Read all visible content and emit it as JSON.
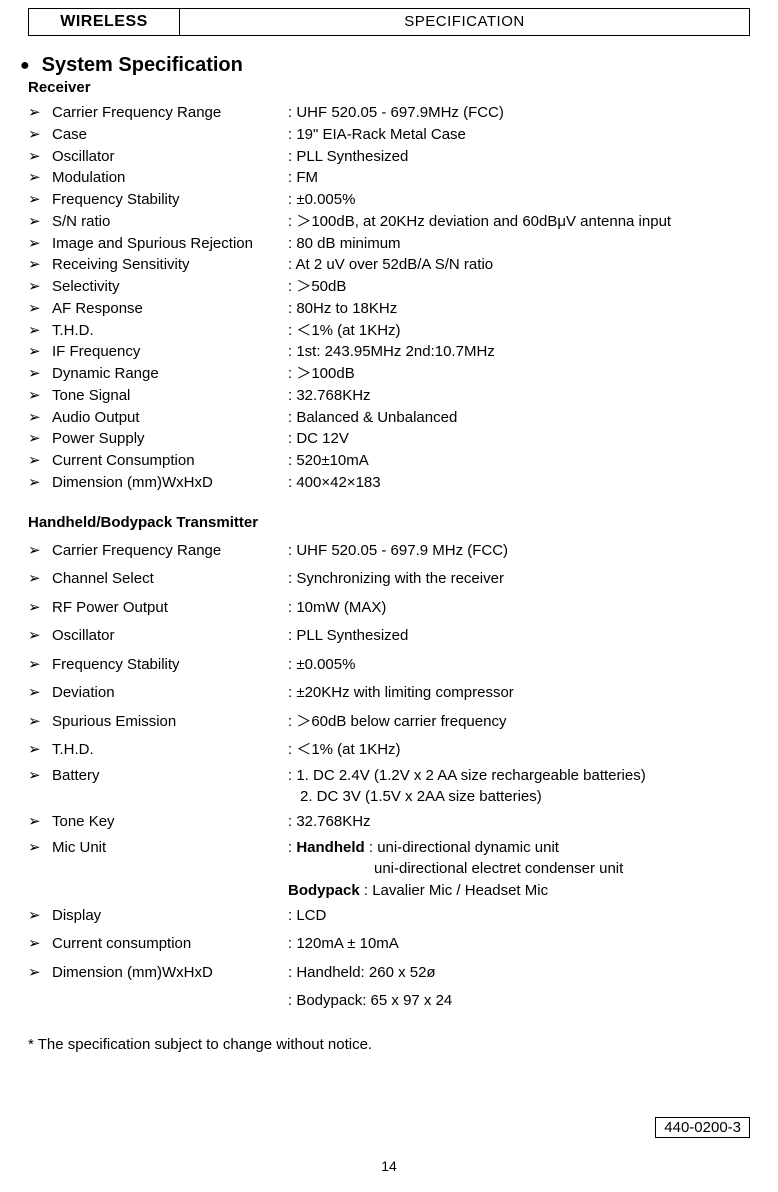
{
  "header": {
    "left": "WIRELESS",
    "right": "SPECIFICATION"
  },
  "section_title": "System Specification",
  "receiver": {
    "heading": "Receiver",
    "rows": [
      {
        "label": "Carrier Frequency Range",
        "value": ": UHF 520.05 - 697.9MHz (FCC)"
      },
      {
        "label": "Case",
        "value": ": 19\" EIA-Rack Metal Case"
      },
      {
        "label": "Oscillator",
        "value": ": PLL Synthesized"
      },
      {
        "label": "Modulation",
        "value": ": FM"
      },
      {
        "label": "Frequency Stability",
        "value": ": ±0.005%"
      },
      {
        "label": "S/N ratio",
        "value": ": ＞100dB, at 20KHz deviation and 60dBμV antenna input"
      },
      {
        "label": "Image and Spurious Rejection",
        "value": ": 80 dB minimum"
      },
      {
        "label": "Receiving Sensitivity",
        "value": ": At 2 uV over 52dB/A S/N ratio"
      },
      {
        "label": "Selectivity",
        "value": ": ＞50dB"
      },
      {
        "label": "AF Response",
        "value": ": 80Hz to 18KHz"
      },
      {
        "label": "T.H.D.",
        "value": ": ＜1% (at 1KHz)"
      },
      {
        "label": "IF Frequency",
        "value": ": 1st: 243.95MHz   2nd:10.7MHz"
      },
      {
        "label": "Dynamic Range",
        "value": ": ＞100dB"
      },
      {
        "label": "Tone Signal",
        "value": ": 32.768KHz"
      },
      {
        "label": "Audio Output",
        "value": ": Balanced & Unbalanced"
      },
      {
        "label": "Power Supply",
        "value": ": DC 12V"
      },
      {
        "label": "Current Consumption",
        "value": ": 520±10mA"
      },
      {
        "label": "Dimension (mm)WxHxD",
        "value": ": 400×42×183"
      }
    ]
  },
  "transmitter": {
    "heading": "Handheld/Bodypack Transmitter",
    "rows": [
      {
        "label": "Carrier Frequency Range",
        "value": ": UHF 520.05 - 697.9 MHz (FCC)"
      },
      {
        "label": "Channel Select",
        "value": ": Synchronizing with the receiver"
      },
      {
        "label": "RF Power Output",
        "value": ": 10mW (MAX)"
      },
      {
        "label": "Oscillator",
        "value": ": PLL Synthesized"
      },
      {
        "label": "Frequency Stability",
        "value": ": ±0.005%"
      },
      {
        "label": "Deviation",
        "value": ": ±20KHz with limiting compressor"
      },
      {
        "label": "Spurious Emission",
        "value": ":  ＞60dB below carrier frequency"
      },
      {
        "label": "T.H.D.",
        "value": ":  ＜1% (at 1KHz)"
      }
    ],
    "battery": {
      "label": "Battery",
      "line1": ": 1. DC 2.4V (1.2V x 2 AA size rechargeable batteries)",
      "line2": "2. DC 3V (1.5V x 2AA size batteries)"
    },
    "tone_key": {
      "label": "Tone Key",
      "value": ": 32.768KHz"
    },
    "mic_unit": {
      "label": "Mic Unit",
      "handheld_prefix": ": ",
      "handheld_bold": "Handheld",
      "handheld_rest": " : uni-directional dynamic unit",
      "handheld_line2": "uni-directional electret condenser unit",
      "bodypack_bold": "Bodypack",
      "bodypack_rest": " : Lavalier Mic / Headset Mic"
    },
    "display": {
      "label": "Display",
      "value": ": LCD"
    },
    "current": {
      "label": "Current consumption",
      "value": ": 120mA ± 10mA"
    },
    "dimension": {
      "label": "Dimension (mm)WxHxD",
      "line1": ": Handheld: 260 x 52ø",
      "line2": ": Bodypack: 65 x 97 x 24"
    }
  },
  "footnote": "* The specification subject  to change without notice.",
  "doc_code": "440-0200-3",
  "page_number": "14",
  "arrow_glyph": "➢"
}
